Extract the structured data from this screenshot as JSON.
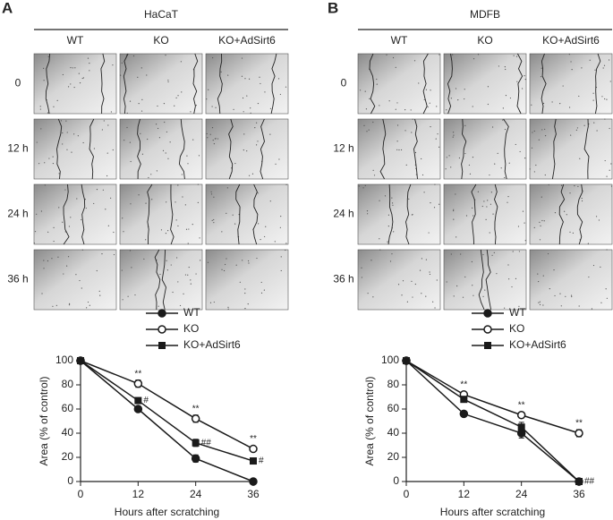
{
  "panels": [
    {
      "letter": "A",
      "title": "HaCaT",
      "columns": [
        "WT",
        "KO",
        "KO+AdSirt6"
      ],
      "rows": [
        "0",
        "12 h",
        "24 h",
        "36 h"
      ]
    },
    {
      "letter": "B",
      "title": "MDFB",
      "columns": [
        "WT",
        "KO",
        "KO+AdSirt6"
      ],
      "rows": [
        "0",
        "12 h",
        "24 h",
        "36 h"
      ]
    }
  ],
  "chart_data": [
    {
      "type": "line",
      "xlabel": "Hours after scratching",
      "ylabel": "Area (% of control)",
      "x": [
        0,
        12,
        24,
        36
      ],
      "xlim": [
        0,
        36
      ],
      "xticks": [
        0,
        12,
        24,
        36
      ],
      "ylim": [
        0,
        100
      ],
      "yticks": [
        0,
        20,
        40,
        60,
        80,
        100
      ],
      "series": [
        {
          "name": "WT",
          "color": "#1a1a1a",
          "marker": "filled-circle",
          "values": [
            100,
            60,
            19,
            0
          ],
          "errors": [
            0,
            1,
            3,
            1
          ]
        },
        {
          "name": "KO",
          "color": "#1a1a1a",
          "marker": "open-circle",
          "values": [
            100,
            81,
            52,
            27
          ],
          "errors": [
            0,
            3,
            3,
            2
          ],
          "significance": [
            null,
            "**",
            "**",
            "**"
          ]
        },
        {
          "name": "KO+AdSirt6",
          "color": "#1a1a1a",
          "marker": "filled-square",
          "values": [
            100,
            67,
            32,
            17
          ],
          "errors": [
            0,
            2,
            3,
            2
          ],
          "significance": [
            null,
            "#",
            "##",
            "#"
          ]
        }
      ]
    },
    {
      "type": "line",
      "xlabel": "Hours after scratching",
      "ylabel": "Area (% of control)",
      "x": [
        0,
        12,
        24,
        36
      ],
      "xlim": [
        0,
        36
      ],
      "xticks": [
        0,
        12,
        24,
        36
      ],
      "ylim": [
        0,
        100
      ],
      "yticks": [
        0,
        20,
        40,
        60,
        80,
        100
      ],
      "series": [
        {
          "name": "WT",
          "color": "#1a1a1a",
          "marker": "filled-circle",
          "values": [
            100,
            56,
            40,
            0
          ],
          "errors": [
            0,
            2,
            4,
            1
          ]
        },
        {
          "name": "KO",
          "color": "#1a1a1a",
          "marker": "open-circle",
          "values": [
            100,
            72,
            55,
            40
          ],
          "errors": [
            0,
            2,
            2,
            3
          ],
          "significance": [
            null,
            "**",
            "**",
            "**"
          ]
        },
        {
          "name": "KO+AdSirt6",
          "color": "#1a1a1a",
          "marker": "filled-square",
          "values": [
            100,
            68,
            45,
            0
          ],
          "errors": [
            0,
            2,
            4,
            1
          ],
          "significance": [
            null,
            null,
            null,
            "##"
          ]
        }
      ]
    }
  ]
}
